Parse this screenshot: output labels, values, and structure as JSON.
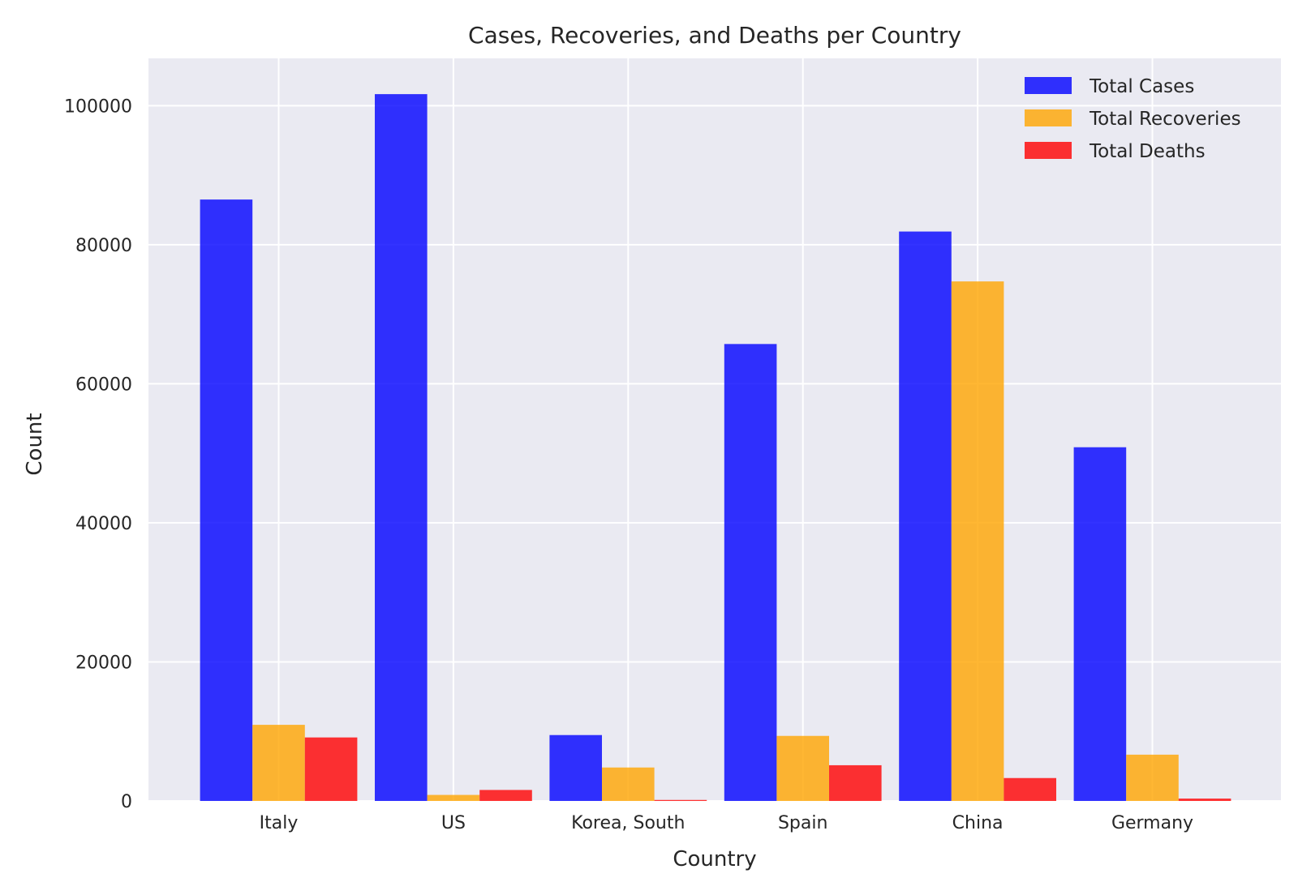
{
  "chart_data": {
    "type": "bar",
    "title": "Cases, Recoveries, and Deaths per Country",
    "xlabel": "Country",
    "ylabel": "Count",
    "categories": [
      "Italy",
      "US",
      "Korea, South",
      "Spain",
      "China",
      "Germany"
    ],
    "series": [
      {
        "name": "Total Cases",
        "color": "#0000ff",
        "values": [
          86498,
          101657,
          9478,
          65719,
          81897,
          50871
        ]
      },
      {
        "name": "Total Recoveries",
        "color": "#ffa500",
        "values": [
          10950,
          869,
          4811,
          9357,
          74720,
          6658
        ]
      },
      {
        "name": "Total Deaths",
        "color": "#ff0000",
        "values": [
          9134,
          1581,
          144,
          5138,
          3296,
          342
        ]
      }
    ],
    "ylim": [
      0,
      106800
    ],
    "yticks": [
      0,
      20000,
      40000,
      60000,
      80000,
      100000
    ],
    "grid": true,
    "legend_position": "top-right",
    "background": "#eaeaf2"
  }
}
